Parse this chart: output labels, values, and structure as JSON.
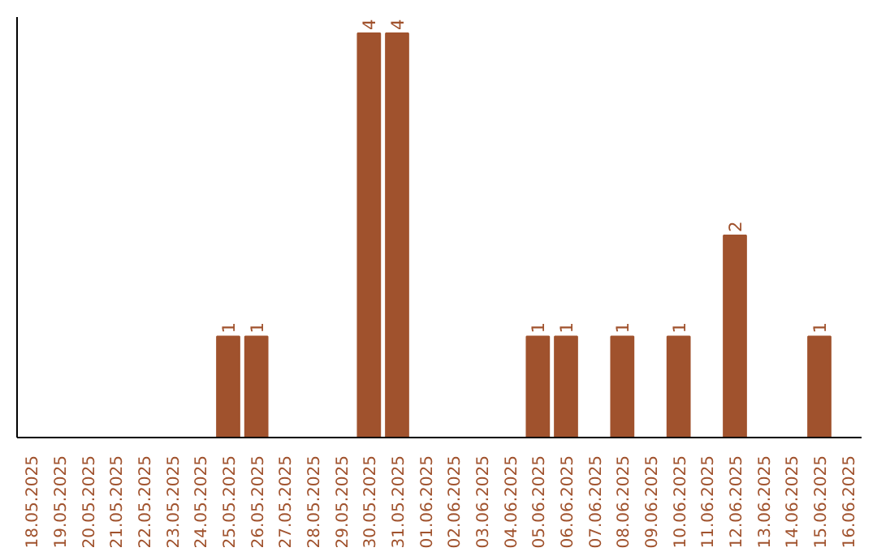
{
  "chart_data": {
    "type": "bar",
    "categories": [
      "18.05.2025",
      "19.05.2025",
      "20.05.2025",
      "21.05.2025",
      "22.05.2025",
      "23.05.2025",
      "24.05.2025",
      "25.05.2025",
      "26.05.2025",
      "27.05.2025",
      "28.05.2025",
      "29.05.2025",
      "30.05.2025",
      "31.05.2025",
      "01.06.2025",
      "02.06.2025",
      "03.06.2025",
      "04.06.2025",
      "05.06.2025",
      "06.06.2025",
      "07.06.2025",
      "08.06.2025",
      "09.06.2025",
      "10.06.2025",
      "11.06.2025",
      "12.06.2025",
      "13.06.2025",
      "14.06.2025",
      "15.06.2025",
      "16.06.2025"
    ],
    "values": [
      0,
      0,
      0,
      0,
      0,
      0,
      0,
      1,
      1,
      0,
      0,
      0,
      4,
      4,
      0,
      0,
      0,
      0,
      1,
      1,
      0,
      1,
      0,
      1,
      0,
      2,
      0,
      0,
      1,
      0
    ],
    "value_labels": [
      null,
      null,
      null,
      null,
      null,
      null,
      null,
      "1",
      "1",
      null,
      null,
      null,
      "4",
      "4",
      null,
      null,
      null,
      null,
      "1",
      "1",
      null,
      "1",
      null,
      "1",
      null,
      "2",
      null,
      null,
      "1",
      null
    ],
    "color": "#a0522d",
    "ylim": [
      0,
      4.16
    ],
    "tick_labels": "x",
    "grid": false
  }
}
